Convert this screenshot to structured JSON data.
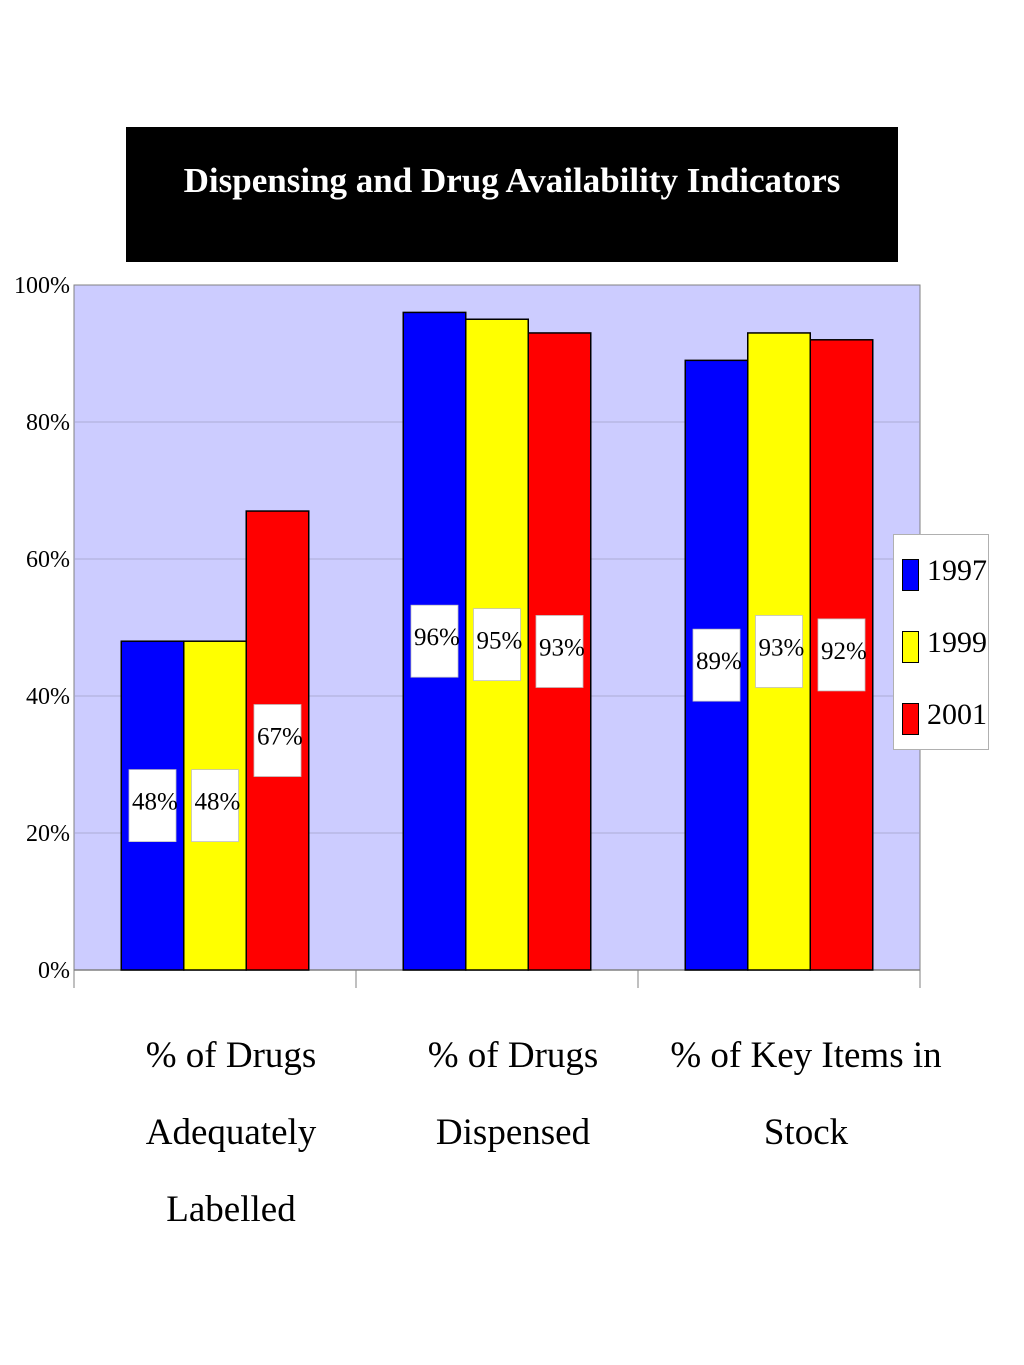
{
  "chart_data": {
    "type": "bar",
    "title": "Dispensing and Drug Availability Indicators",
    "categories": [
      [
        "% of Drugs",
        "Adequately",
        "Labelled"
      ],
      [
        "% of Drugs",
        "Dispensed"
      ],
      [
        "% of Key Items in",
        "Stock"
      ]
    ],
    "series": [
      {
        "name": "1997",
        "color": "#0000ff",
        "values": [
          48,
          96,
          89
        ],
        "labels": [
          "48%",
          "96%",
          "89%"
        ]
      },
      {
        "name": "1999",
        "color": "#ffff00",
        "values": [
          48,
          95,
          93
        ],
        "labels": [
          "48%",
          "95%",
          "93%"
        ]
      },
      {
        "name": "2001",
        "color": "#ff0000",
        "values": [
          67,
          93,
          92
        ],
        "labels": [
          "67%",
          "93%",
          "92%"
        ]
      }
    ],
    "ylim": [
      0,
      100
    ],
    "yticks": [
      0,
      20,
      40,
      60,
      80,
      100
    ],
    "ytick_labels": [
      "0%",
      "20%",
      "40%",
      "60%",
      "80%",
      "100%"
    ],
    "grid": true,
    "plot_background": "#ccccff",
    "legend_position": "right"
  }
}
